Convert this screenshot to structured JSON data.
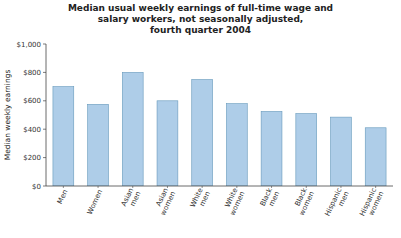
{
  "chart_data": {
    "type": "bar",
    "title": "Median usual weekly earnings of full-time wage and\nsalary workers, not seasonally adjusted,\nfourth quarter 2004",
    "y_label": "Median weekly earnings",
    "categories": [
      "Men",
      "Women",
      "Asian\nmen",
      "Asian\nwomen",
      "White\nmen",
      "White\nwomen",
      "Black\nmen",
      "Black\nwomen",
      "Hispanic\nmen",
      "Hispanic\nwomen"
    ],
    "values": [
      700,
      575,
      800,
      600,
      750,
      580,
      525,
      510,
      485,
      410
    ],
    "color": "#aecde8",
    "ylim": [
      0,
      1000
    ],
    "yticks": [
      {
        "value": 0,
        "label": "$0"
      },
      {
        "value": 200,
        "label": "$200"
      },
      {
        "value": 400,
        "label": "$400"
      },
      {
        "value": 600,
        "label": "$600"
      },
      {
        "value": 800,
        "label": "$800"
      },
      {
        "value": 1000,
        "label": "$1,000"
      }
    ],
    "grid": false
  }
}
